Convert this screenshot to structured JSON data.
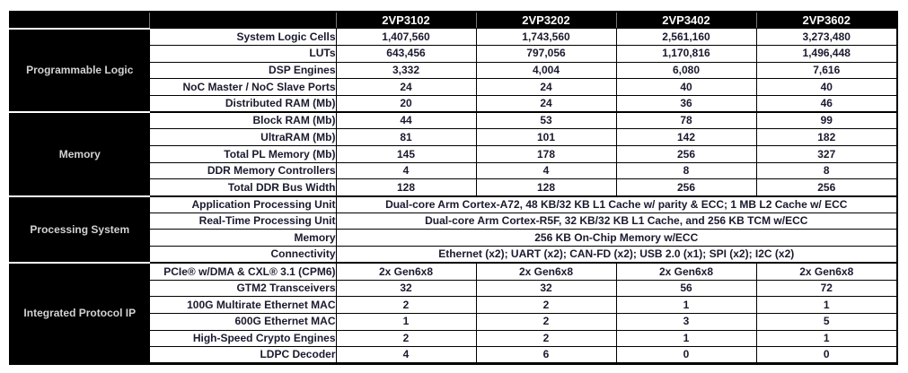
{
  "chart_data": {
    "type": "table",
    "title": "",
    "columns": [
      "2VP3102",
      "2VP3202",
      "2VP3402",
      "2VP3602"
    ],
    "sections": [
      {
        "label": "Programmable Logic",
        "rows": [
          {
            "label": "System Logic Cells",
            "values": [
              "1,407,560",
              "1,743,560",
              "2,561,160",
              "3,273,480"
            ]
          },
          {
            "label": "LUTs",
            "values": [
              "643,456",
              "797,056",
              "1,170,816",
              "1,496,448"
            ]
          },
          {
            "label": "DSP Engines",
            "values": [
              "3,332",
              "4,004",
              "6,080",
              "7,616"
            ]
          },
          {
            "label": "NoC Master / NoC Slave Ports",
            "values": [
              "24",
              "24",
              "40",
              "40"
            ]
          },
          {
            "label": "Distributed RAM (Mb)",
            "values": [
              "20",
              "24",
              "36",
              "46"
            ]
          }
        ]
      },
      {
        "label": "Memory",
        "rows": [
          {
            "label": "Block RAM (Mb)",
            "values": [
              "44",
              "53",
              "78",
              "99"
            ]
          },
          {
            "label": "UltraRAM (Mb)",
            "values": [
              "81",
              "101",
              "142",
              "182"
            ]
          },
          {
            "label": "Total PL Memory (Mb)",
            "values": [
              "145",
              "178",
              "256",
              "327"
            ]
          },
          {
            "label": "DDR Memory Controllers",
            "values": [
              "4",
              "4",
              "8",
              "8"
            ]
          },
          {
            "label": "Total DDR Bus Width",
            "values": [
              "128",
              "128",
              "256",
              "256"
            ]
          }
        ]
      },
      {
        "label": "Processing System",
        "rows": [
          {
            "label": "Application Processing Unit",
            "span_value": "Dual-core Arm Cortex-A72, 48 KB/32 KB L1 Cache w/ parity & ECC; 1 MB L2 Cache w/ ECC"
          },
          {
            "label": "Real-Time Processing Unit",
            "span_value": "Dual-core Arm Cortex-R5F, 32 KB/32 KB L1 Cache, and 256 KB TCM w/ECC"
          },
          {
            "label": "Memory",
            "span_value": "256 KB On-Chip Memory w/ECC"
          },
          {
            "label": "Connectivity",
            "span_value": "Ethernet (x2); UART (x2); CAN-FD (x2); USB 2.0 (x1); SPI (x2); I2C (x2)"
          }
        ]
      },
      {
        "label": "Integrated\nProtocol IP",
        "rows": [
          {
            "label": "PCIe® w/DMA & CXL® 3.1 (CPM6)",
            "values": [
              "2x Gen6x8",
              "2x Gen6x8",
              "2x Gen6x8",
              "2x Gen6x8"
            ]
          },
          {
            "label": "GTM2 Transceivers",
            "values": [
              "32",
              "32",
              "56",
              "72"
            ]
          },
          {
            "label": "100G Multirate Ethernet MAC",
            "values": [
              "2",
              "2",
              "1",
              "1"
            ]
          },
          {
            "label": "600G Ethernet MAC",
            "values": [
              "1",
              "2",
              "3",
              "5"
            ]
          },
          {
            "label": "High-Speed Crypto Engines",
            "values": [
              "2",
              "2",
              "1",
              "1"
            ]
          },
          {
            "label": "LDPC Decoder",
            "values": [
              "4",
              "6",
              "0",
              "0"
            ]
          }
        ]
      }
    ],
    "layout": {
      "legend": "none",
      "grid": "solid black cell borders, thick borders between sections",
      "header_position": "top"
    }
  },
  "styles": {
    "header_bg": "#000000",
    "header_text": "#ffffff",
    "section_bg": "#000000",
    "section_text": "#d2d2d2",
    "value_text": "#1a1a2e",
    "border_color": "#000000",
    "page_background": "#ffffff"
  }
}
